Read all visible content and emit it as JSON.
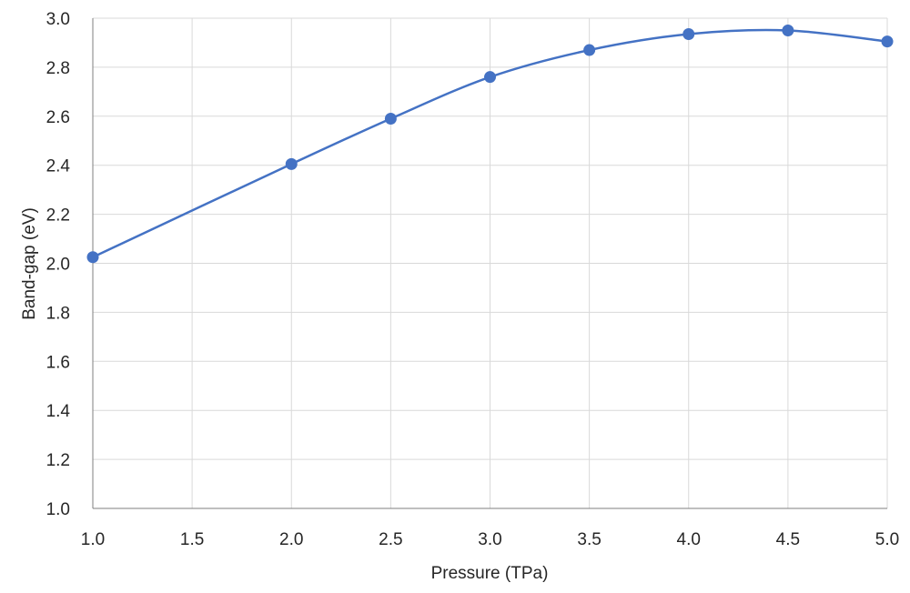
{
  "chart_data": {
    "type": "line",
    "smooth": true,
    "xlabel": "Pressure (TPa)",
    "ylabel": "Band-gap (eV)",
    "xlim": [
      1.0,
      5.0
    ],
    "ylim": [
      1.0,
      3.0
    ],
    "xticks": [
      "1.0",
      "1.5",
      "2.0",
      "2.5",
      "3.0",
      "3.5",
      "4.0",
      "4.5",
      "5.0"
    ],
    "yticks": [
      "1.0",
      "1.2",
      "1.4",
      "1.6",
      "1.8",
      "2.0",
      "2.2",
      "2.4",
      "2.6",
      "2.8",
      "3.0"
    ],
    "grid": true,
    "legend": "none",
    "series": [
      {
        "color": "#4472c4",
        "x": [
          1.0,
          2.0,
          2.5,
          3.0,
          3.5,
          4.0,
          4.5,
          5.0
        ],
        "y": [
          2.025,
          2.405,
          2.59,
          2.76,
          2.87,
          2.935,
          2.95,
          2.905
        ]
      }
    ]
  }
}
